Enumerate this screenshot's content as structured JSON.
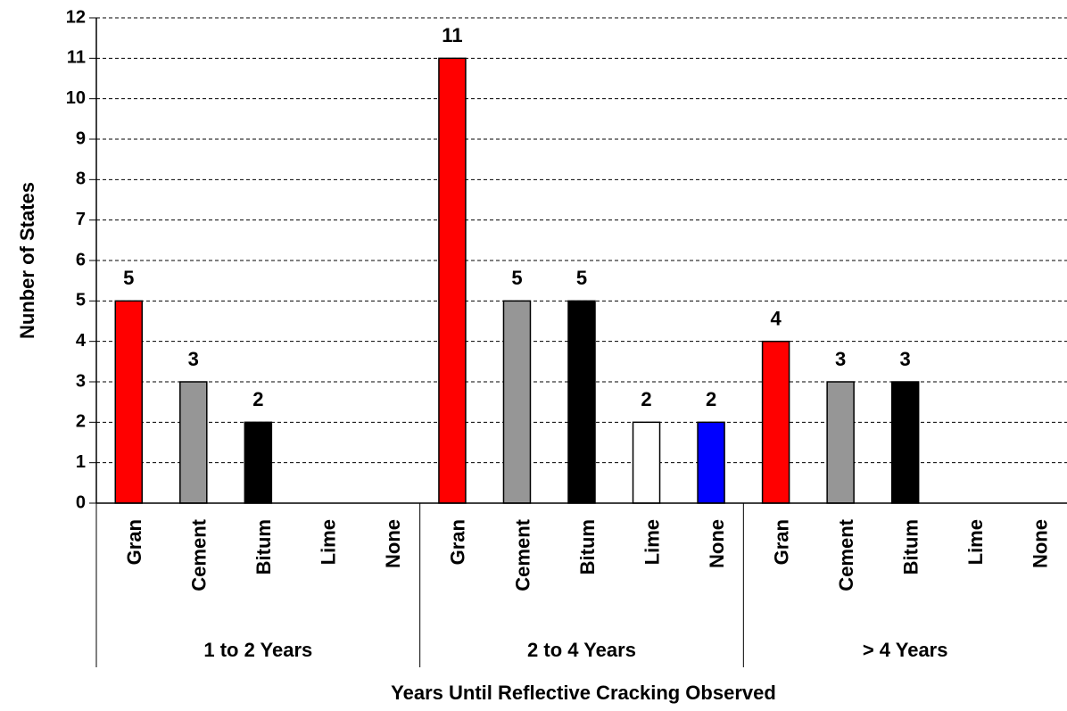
{
  "chart_data": {
    "type": "bar",
    "y_label": "Nunber of States",
    "x_label": "Years Until Reflective Cracking Observed",
    "ylim": [
      0,
      12
    ],
    "yticks": [
      0,
      1,
      2,
      3,
      4,
      5,
      6,
      7,
      8,
      9,
      10,
      11,
      12
    ],
    "grid": true,
    "colors": [
      "#ff0000",
      "#969696",
      "#000000",
      "#ffffff",
      "#0000ff"
    ],
    "groups": [
      {
        "name": "1 to 2 Years",
        "categories": [
          "Gran",
          "Cement",
          "Bitum",
          "Lime",
          "None"
        ],
        "values": [
          5,
          3,
          2,
          null,
          null
        ]
      },
      {
        "name": "2 to 4 Years",
        "categories": [
          "Gran",
          "Cement",
          "Bitum",
          "Lime",
          "None"
        ],
        "values": [
          11,
          5,
          5,
          2,
          2
        ]
      },
      {
        "name": "> 4 Years",
        "categories": [
          "Gran",
          "Cement",
          "Bitum",
          "Lime",
          "None"
        ],
        "values": [
          4,
          3,
          3,
          null,
          null
        ]
      }
    ]
  }
}
